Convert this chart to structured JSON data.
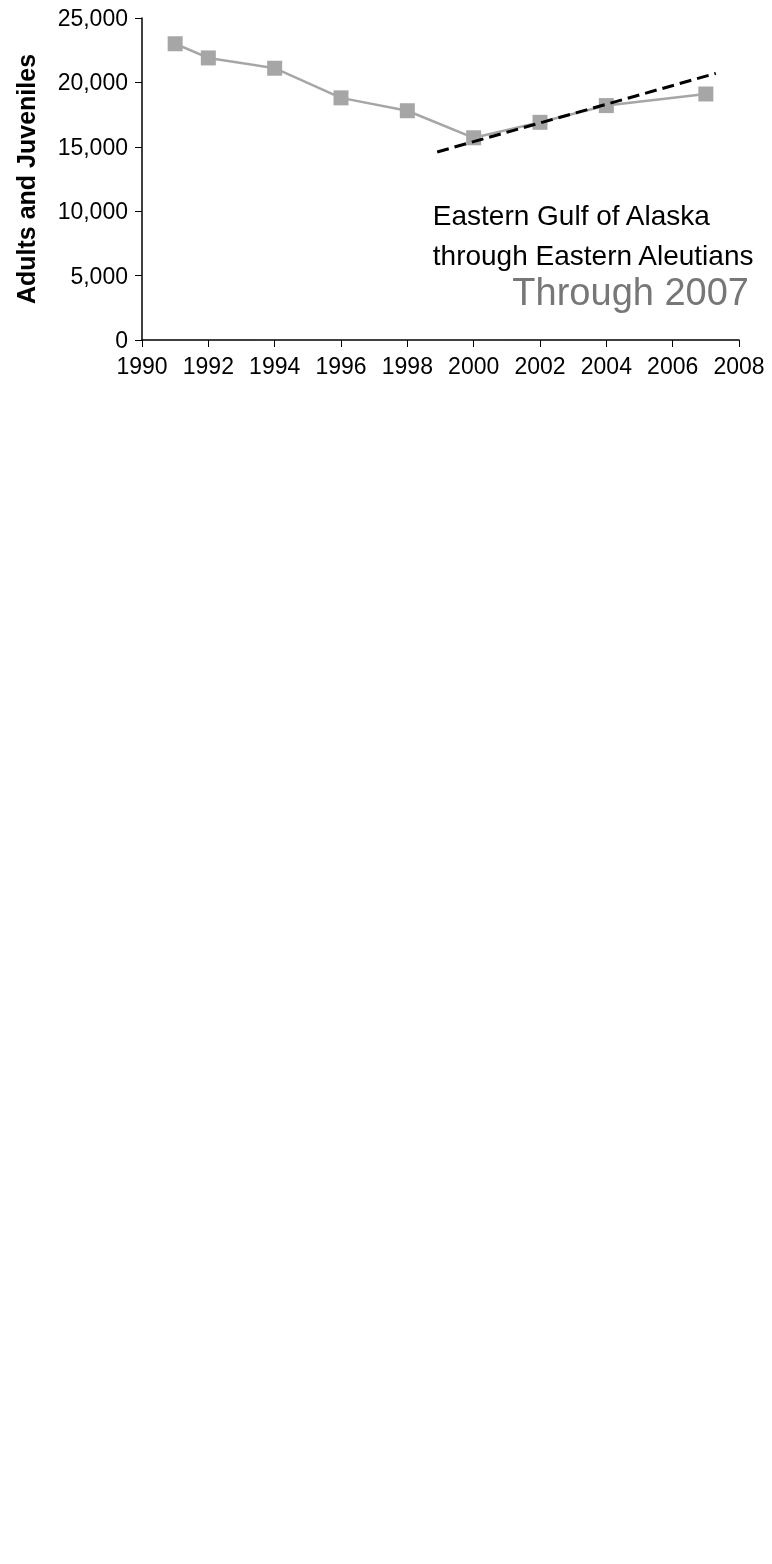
{
  "chart_data": {
    "type": "line",
    "title": "Eastern Gulf of Alaska\nthrough Eastern Aleutians",
    "subtitle": "Through 2007",
    "ylabel": "Adults and Juveniles",
    "series": [
      {
        "color": "#a6a6a6",
        "marker": "square",
        "x": [
          1991,
          1992,
          1994,
          1996,
          1998,
          2000,
          2002,
          2004,
          2007
        ],
        "values": [
          23000,
          21900,
          21100,
          18800,
          17800,
          15700,
          16900,
          18200,
          19100
        ]
      },
      {
        "type": "line",
        "color": "#000000",
        "marker": "none",
        "line_style": "dashed",
        "x": [
          1998.9,
          2007.3
        ],
        "values": [
          14600,
          20700
        ]
      }
    ],
    "xlim": [
      1990,
      2008
    ],
    "xticks": [
      1990,
      1992,
      1994,
      1996,
      1998,
      2000,
      2002,
      2004,
      2006,
      2008
    ],
    "ylim": [
      0,
      25000
    ],
    "yticks": [
      0,
      {
        "value": 5000,
        "label": "5,000"
      },
      {
        "value": 10000,
        "label": "10,000"
      },
      {
        "value": 15000,
        "label": "15,000"
      },
      {
        "value": 20000,
        "label": "20,000"
      },
      {
        "value": 25000,
        "label": "25,000"
      }
    ],
    "grid": false
  }
}
